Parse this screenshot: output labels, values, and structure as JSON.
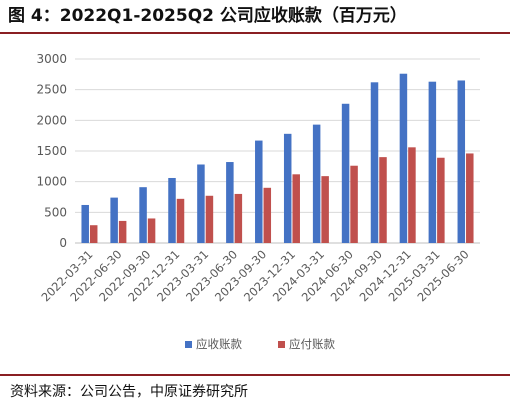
{
  "figure": {
    "title": "图 4：2022Q1-2025Q2 公司应收账款（百万元）",
    "source": "资料来源：公司公告，中原证券研究所"
  },
  "colors": {
    "accent_rule": "#8a1f23",
    "series_receivable": "#4472c4",
    "series_payable": "#c0504d",
    "gridline": "#d9d9d9",
    "axis_text": "#595959"
  },
  "chart_data": {
    "type": "bar",
    "title": "",
    "xlabel": "",
    "ylabel": "",
    "categories": [
      "2022-03-31",
      "2022-06-30",
      "2022-09-30",
      "2022-12-31",
      "2023-03-31",
      "2023-06-30",
      "2023-09-30",
      "2023-12-31",
      "2024-03-31",
      "2024-06-30",
      "2024-09-30",
      "2024-12-31",
      "2025-03-31",
      "2025-06-30"
    ],
    "series": [
      {
        "name": "应收账款",
        "values": [
          620,
          740,
          910,
          1060,
          1280,
          1320,
          1670,
          1780,
          1930,
          2270,
          2620,
          2760,
          2630,
          2650
        ]
      },
      {
        "name": "应付账款",
        "values": [
          290,
          360,
          400,
          720,
          770,
          800,
          900,
          1120,
          1090,
          1260,
          1400,
          1560,
          1390,
          1460
        ]
      }
    ],
    "ylim": [
      0,
      3000
    ],
    "yticks": [
      "0",
      "500",
      "1000",
      "1500",
      "2000",
      "2500",
      "3000"
    ],
    "grid": true,
    "legend_position": "bottom"
  }
}
